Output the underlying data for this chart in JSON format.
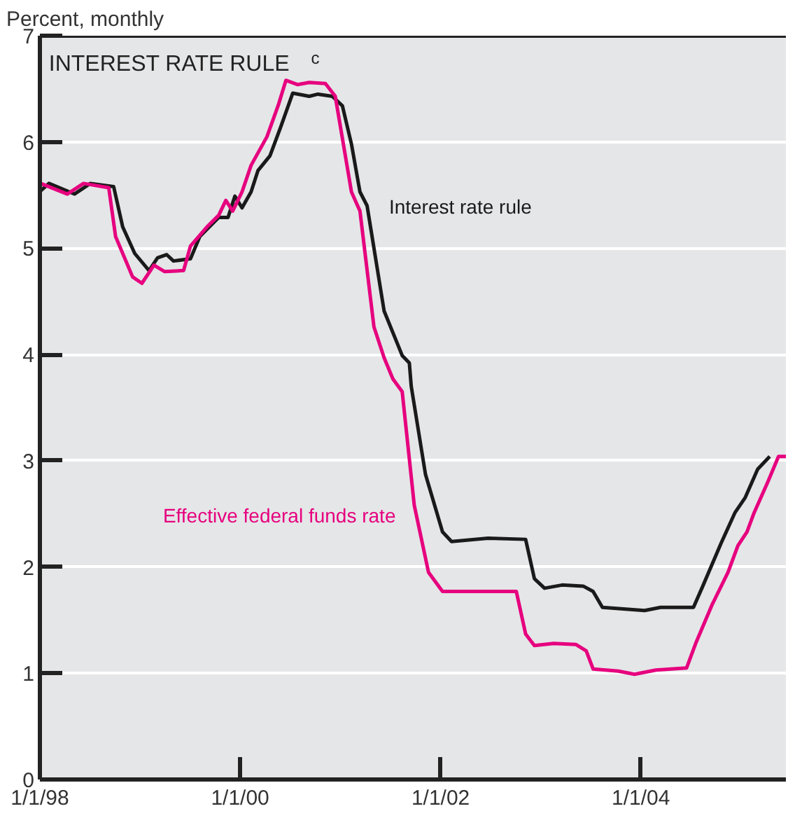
{
  "chart_data": {
    "type": "line",
    "title": "INTEREST RATE RULE$^{c}$",
    "ylabel": "Percent, monthly",
    "xlim": [
      "1998-01-01",
      "2005-06-13"
    ],
    "ylim": [
      0,
      7
    ],
    "xticks": [
      {
        "value": "1998-01-01",
        "label": "1/1/98"
      },
      {
        "value": "2000-01-01",
        "label": "1/1/00"
      },
      {
        "value": "2002-01-01",
        "label": "1/1/02"
      },
      {
        "value": "2004-01-01",
        "label": "1/1/04"
      }
    ],
    "yticks": [
      0,
      1,
      2,
      3,
      4,
      5,
      6,
      7
    ],
    "grid": "y",
    "legend": false,
    "marker": "none",
    "line_style": "solid",
    "series": [
      {
        "name": "Interest rate rule",
        "color": "#1a1a1a",
        "x": [
          "1998-01-04",
          "1998-02-03",
          "1998-05-07",
          "1998-07-04",
          "1998-09-27",
          "1998-10-30",
          "1998-12-13",
          "1999-02-03",
          "1999-03-06",
          "1999-04-08",
          "1999-05-03",
          "1999-07-04",
          "1999-08-07",
          "1999-10-15",
          "1999-11-18",
          "1999-12-13",
          "2000-01-08",
          "2000-02-10",
          "2000-03-06",
          "2000-04-19",
          "2000-05-28",
          "2000-07-11",
          "2000-09-09",
          "2000-10-11",
          "2000-12-02",
          "2001-01-08",
          "2001-02-10",
          "2001-03-13",
          "2001-04-08",
          "2001-06-09",
          "2001-08-14",
          "2001-09-09",
          "2001-09-16",
          "2001-11-07",
          "2002-01-08",
          "2002-02-10",
          "2002-06-23",
          "2002-11-07",
          "2002-12-09",
          "2003-01-15",
          "2003-03-20",
          "2003-06-05",
          "2003-07-11",
          "2003-08-14",
          "2004-01-15",
          "2004-03-13",
          "2004-07-11",
          "2004-08-14",
          "2004-10-19",
          "2004-12-09",
          "2005-01-15",
          "2005-03-02",
          "2005-04-15"
        ],
        "values": [
          5.54,
          5.61,
          5.51,
          5.61,
          5.58,
          5.2,
          4.95,
          4.79,
          4.91,
          4.94,
          4.88,
          4.9,
          5.11,
          5.29,
          5.29,
          5.49,
          5.38,
          5.53,
          5.73,
          5.87,
          6.14,
          6.46,
          6.43,
          6.45,
          6.43,
          6.34,
          5.98,
          5.53,
          5.4,
          4.41,
          3.99,
          3.92,
          3.7,
          2.87,
          2.33,
          2.24,
          2.27,
          2.26,
          1.89,
          1.8,
          1.83,
          1.82,
          1.77,
          1.62,
          1.59,
          1.62,
          1.62,
          1.82,
          2.22,
          2.51,
          2.65,
          2.92,
          3.04
        ]
      },
      {
        "name": "Effective federal funds rate",
        "color": "#e6007e",
        "x": [
          "1998-01-04",
          "1998-04-11",
          "1998-06-09",
          "1998-09-09",
          "1998-10-04",
          "1998-12-05",
          "1999-01-08",
          "1999-02-21",
          "1999-04-01",
          "1999-06-09",
          "1999-07-04",
          "1999-09-02",
          "1999-10-15",
          "1999-11-10",
          "1999-12-05",
          "2000-01-08",
          "2000-02-10",
          "2000-04-08",
          "2000-05-21",
          "2000-06-16",
          "2000-07-29",
          "2000-09-09",
          "2000-11-07",
          "2000-12-13",
          "2001-02-10",
          "2001-03-13",
          "2001-05-03",
          "2001-06-09",
          "2001-07-11",
          "2001-08-14",
          "2001-09-27",
          "2001-11-18",
          "2002-01-08",
          "2002-04-19",
          "2002-10-04",
          "2002-11-07",
          "2002-12-09",
          "2003-02-17",
          "2003-05-10",
          "2003-06-16",
          "2003-07-11",
          "2003-10-11",
          "2003-12-09",
          "2004-02-25",
          "2004-06-16",
          "2004-07-19",
          "2004-09-16",
          "2004-11-14",
          "2004-12-20",
          "2005-01-22",
          "2005-02-17",
          "2005-04-08",
          "2005-05-17",
          "2005-06-13"
        ],
        "values": [
          5.61,
          5.51,
          5.61,
          5.57,
          5.11,
          4.73,
          4.67,
          4.84,
          4.78,
          4.79,
          5.02,
          5.2,
          5.31,
          5.45,
          5.35,
          5.53,
          5.78,
          6.05,
          6.36,
          6.58,
          6.54,
          6.56,
          6.55,
          6.43,
          5.53,
          5.35,
          4.26,
          3.97,
          3.77,
          3.65,
          2.58,
          1.95,
          1.77,
          1.77,
          1.77,
          1.37,
          1.26,
          1.28,
          1.27,
          1.21,
          1.04,
          1.02,
          0.99,
          1.03,
          1.05,
          1.28,
          1.64,
          1.95,
          2.2,
          2.33,
          2.51,
          2.8,
          3.04,
          3.04
        ]
      }
    ]
  }
}
